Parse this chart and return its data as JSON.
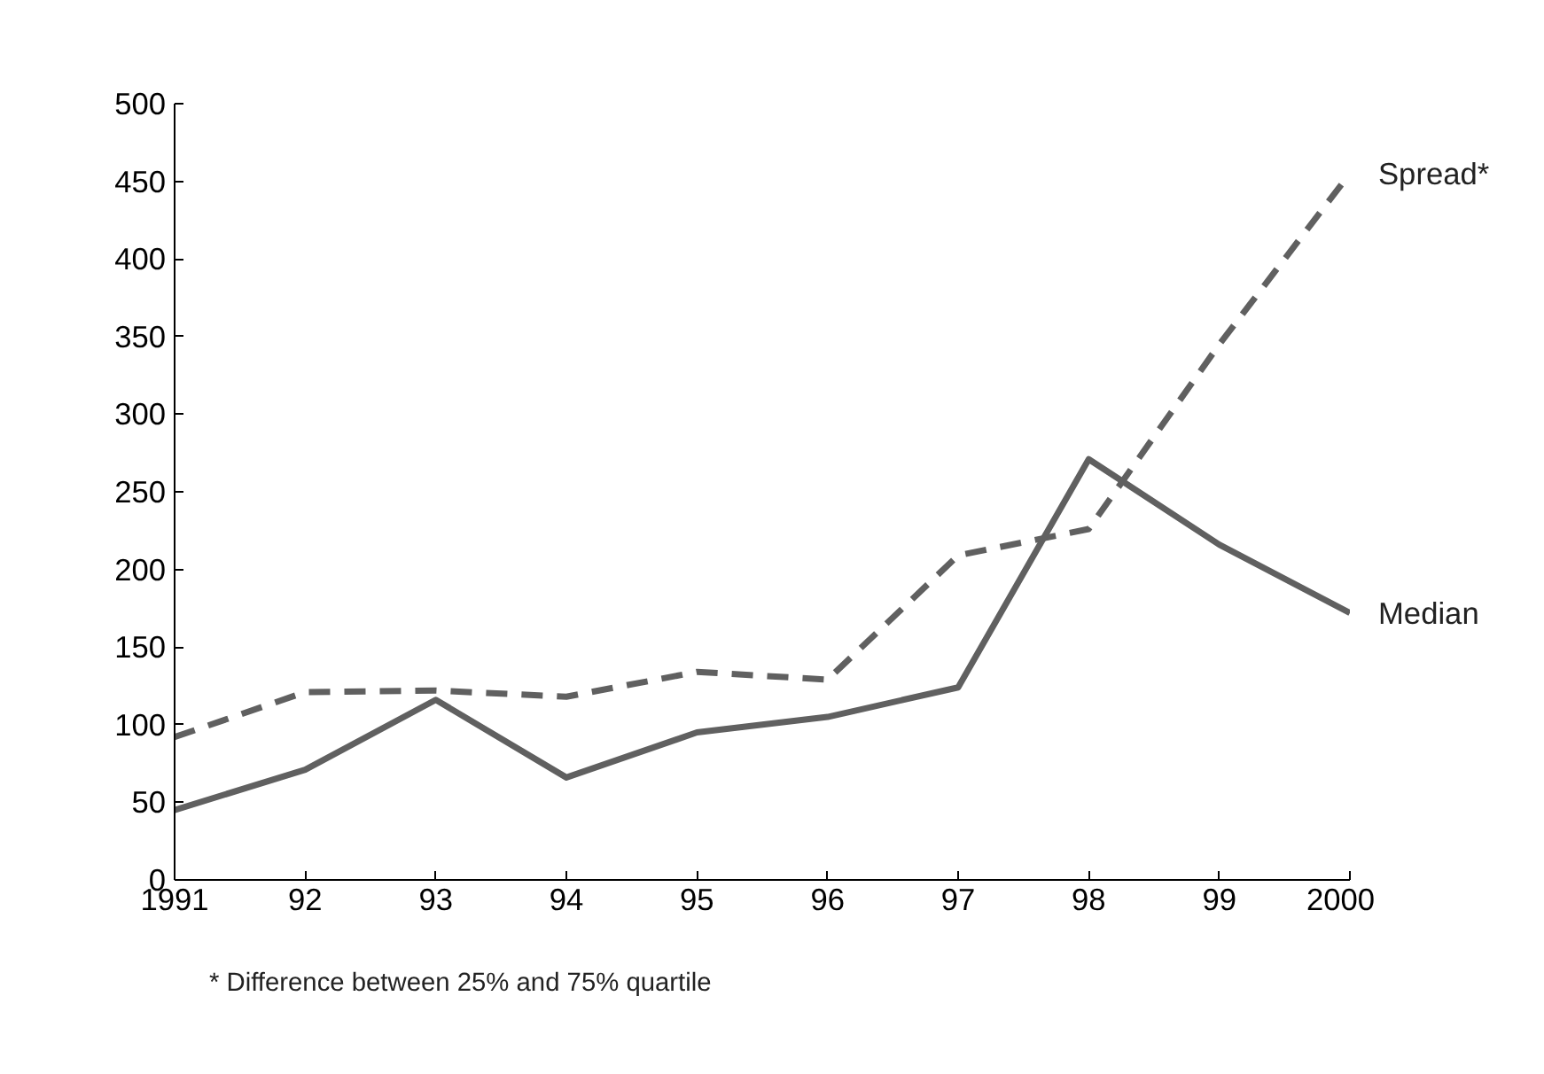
{
  "chart_data": {
    "type": "line",
    "x": [
      1991,
      1992,
      1993,
      1994,
      1995,
      1996,
      1997,
      1998,
      1999,
      2000
    ],
    "xlim": [
      1991,
      2000
    ],
    "xticks": [
      1991,
      {
        "value": 1992,
        "label": "92"
      },
      {
        "value": 1993,
        "label": "93"
      },
      {
        "value": 1994,
        "label": "94"
      },
      {
        "value": 1995,
        "label": "95"
      },
      {
        "value": 1996,
        "label": "96"
      },
      {
        "value": 1997,
        "label": "97"
      },
      {
        "value": 1998,
        "label": "98"
      },
      {
        "value": 1999,
        "label": "99"
      },
      2000
    ],
    "ylim": [
      0,
      500
    ],
    "yticks": [
      0,
      50,
      100,
      150,
      200,
      250,
      300,
      350,
      400,
      450,
      500
    ],
    "series": [
      {
        "name": "Spread*",
        "color": "#606060",
        "line_style": "dashed",
        "values": [
          92,
          121,
          122,
          118,
          134,
          129,
          209,
          226,
          345,
          455
        ]
      },
      {
        "name": "Median",
        "color": "#606060",
        "line_style": "solid",
        "values": [
          45,
          71,
          116,
          66,
          95,
          105,
          124,
          271,
          216,
          172
        ]
      }
    ],
    "grid": false,
    "legend": false,
    "marker": "none",
    "annotations": [
      "* Difference between 25% and 75% quartile"
    ]
  }
}
